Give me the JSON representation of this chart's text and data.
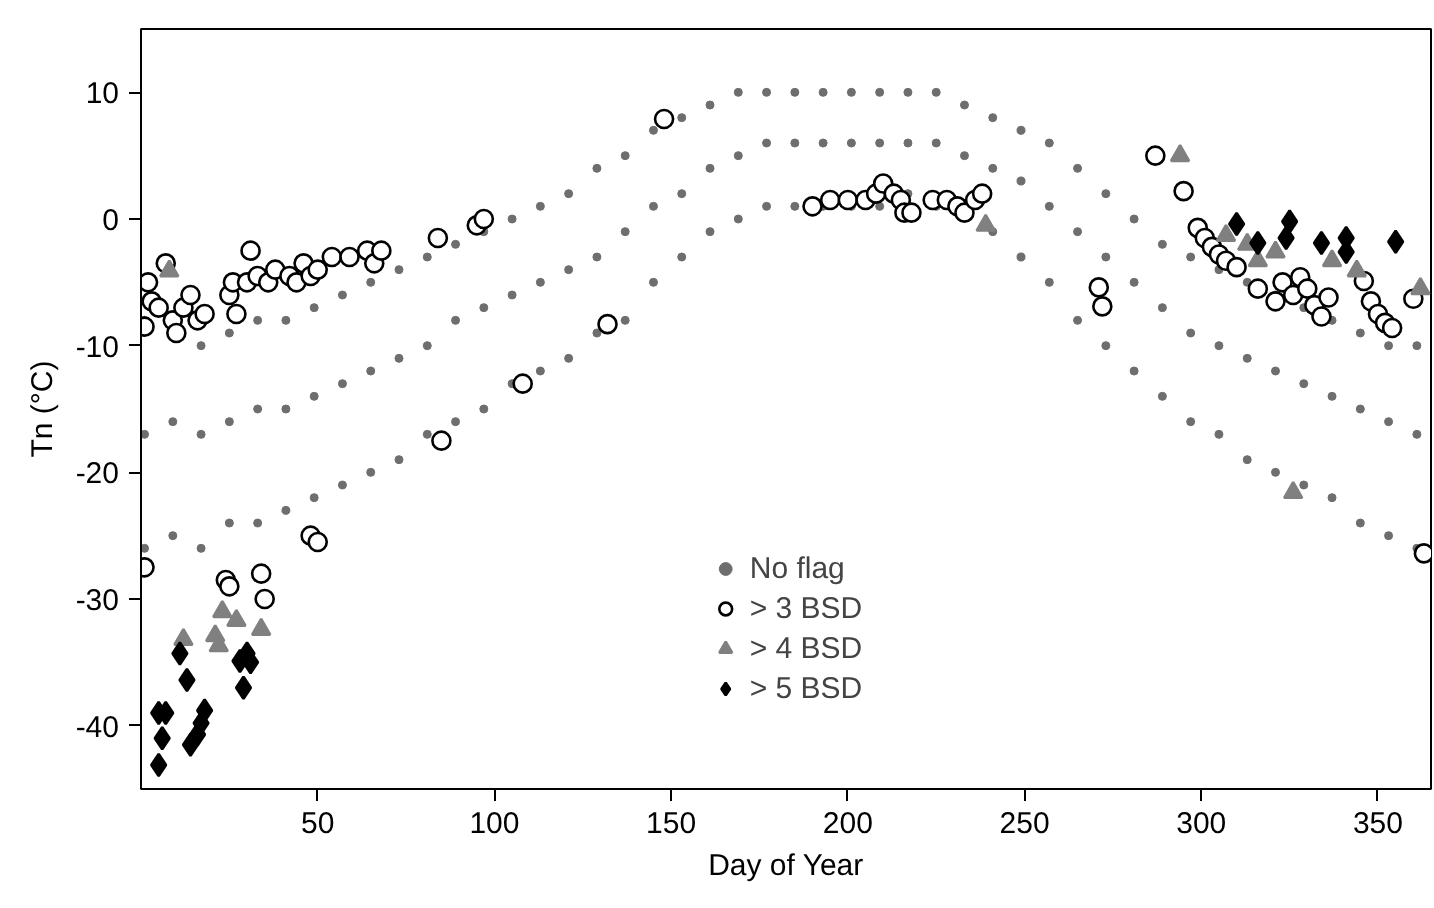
{
  "chart_data": {
    "type": "scatter",
    "xlabel": "Day of Year",
    "ylabel": "Tn (°C)",
    "xlim": [
      0,
      365
    ],
    "ylim": [
      -45,
      15
    ],
    "xticks": [
      50,
      100,
      150,
      200,
      250,
      300,
      350
    ],
    "yticks": [
      -40,
      -30,
      -20,
      -10,
      0,
      10
    ],
    "grid": false,
    "legend": "bottom",
    "series": [
      {
        "name": "No flag",
        "color": "#6e6e6e",
        "marker": "circle",
        "x": [
          1,
          1,
          1,
          9,
          9,
          17,
          17,
          17,
          25,
          25,
          25,
          33,
          33,
          33,
          41,
          41,
          41,
          49,
          49,
          49,
          57,
          57,
          57,
          65,
          65,
          65,
          73,
          73,
          73,
          81,
          81,
          81,
          89,
          89,
          89,
          97,
          97,
          97,
          105,
          105,
          105,
          113,
          113,
          113,
          121,
          121,
          121,
          129,
          129,
          129,
          137,
          137,
          137,
          145,
          145,
          145,
          153,
          153,
          153,
          161,
          161,
          161,
          169,
          169,
          169,
          177,
          177,
          177,
          185,
          185,
          185,
          193,
          193,
          193,
          201,
          201,
          201,
          209,
          209,
          209,
          217,
          217,
          217,
          225,
          225,
          225,
          233,
          233,
          241,
          241,
          241,
          249,
          249,
          249,
          257,
          257,
          257,
          265,
          265,
          265,
          273,
          273,
          273,
          281,
          281,
          281,
          289,
          289,
          289,
          297,
          297,
          297,
          305,
          305,
          305,
          313,
          313,
          313,
          321,
          321,
          321,
          329,
          329,
          329,
          337,
          337,
          337,
          345,
          345,
          345,
          353,
          353,
          353,
          361,
          361,
          361
        ],
        "values": [
          -26,
          -17,
          -8,
          -25,
          -16,
          -26,
          -17,
          -10,
          -24,
          -16,
          -9,
          -24,
          -15,
          -8,
          -23,
          -15,
          -8,
          -22,
          -14,
          -7,
          -21,
          -13,
          -6,
          -20,
          -12,
          -5,
          -19,
          -11,
          -4,
          -17,
          -10,
          -3,
          -16,
          -8,
          -2,
          -15,
          -7,
          -1,
          -13,
          -6,
          0,
          -12,
          -5,
          1,
          -11,
          -4,
          2,
          -9,
          -3,
          4,
          -8,
          -1,
          5,
          -5,
          1,
          7,
          -3,
          2,
          8,
          -1,
          4,
          9,
          0,
          5,
          10,
          1,
          6,
          10,
          1,
          6,
          10,
          1,
          6,
          10,
          1,
          6,
          10,
          1,
          6,
          10,
          2,
          6,
          10,
          1,
          6,
          10,
          5,
          9,
          -1,
          4,
          8,
          -3,
          3,
          7,
          -5,
          1,
          6,
          -8,
          -1,
          4,
          -10,
          -3,
          2,
          -12,
          -5,
          0,
          -14,
          -7,
          -2,
          -16,
          -9,
          -3,
          -17,
          -10,
          -4,
          -19,
          -11,
          -5,
          -20,
          -12,
          -6,
          -21,
          -13,
          -7,
          -22,
          -14,
          -8,
          -24,
          -15,
          -9,
          -25,
          -16,
          -10,
          -26,
          -17,
          -10
        ]
      },
      {
        "name": "> 3 BSD",
        "color": "#000000",
        "marker": "circle",
        "x": [
          1,
          2,
          3,
          5,
          7,
          9,
          10,
          12,
          14,
          16,
          18,
          25,
          26,
          27,
          30,
          31,
          33,
          36,
          38,
          42,
          44,
          46,
          48,
          50,
          54,
          59,
          64,
          66,
          68,
          84,
          95,
          97,
          1,
          24,
          25,
          34,
          35,
          48,
          50,
          85,
          108,
          132,
          148,
          190,
          195,
          200,
          205,
          208,
          210,
          213,
          215,
          216,
          218,
          224,
          228,
          231,
          233,
          236,
          238,
          271,
          272,
          287,
          295,
          299,
          301,
          303,
          305,
          307,
          310,
          316,
          321,
          323,
          326,
          328,
          330,
          332,
          334,
          336,
          346,
          348,
          350,
          352,
          354,
          360,
          363
        ],
        "values": [
          -8.5,
          -5,
          -6.5,
          -7,
          -3.5,
          -8,
          -9,
          -7,
          -6,
          -8,
          -7.5,
          -6,
          -5,
          -7.5,
          -5,
          -2.5,
          -4.5,
          -5,
          -4,
          -4.5,
          -5,
          -3.5,
          -4.5,
          -4,
          -3,
          -3,
          -2.5,
          -3.5,
          -2.5,
          -1.5,
          -0.5,
          0,
          -27.5,
          -28.5,
          -29,
          -28,
          -30,
          -25,
          -25.5,
          -17.5,
          -13,
          -8.3,
          7.9,
          1,
          1.5,
          1.5,
          1.5,
          2,
          2.8,
          2,
          1.5,
          0.5,
          0.5,
          1.5,
          1.5,
          1,
          0.5,
          1.5,
          2,
          -5.4,
          -6.9,
          5,
          2.2,
          -0.7,
          -1.5,
          -2.2,
          -2.8,
          -3.3,
          -3.8,
          -5.5,
          -6.5,
          -5,
          -6,
          -4.6,
          -5.5,
          -6.8,
          -7.7,
          -6.2,
          -4.9,
          -6.5,
          -7.5,
          -8.2,
          -8.6,
          -6.3,
          -26.4
        ]
      },
      {
        "name": "> 4 BSD",
        "color": "#808080",
        "marker": "triangle",
        "x": [
          8,
          12,
          21,
          22,
          23,
          27,
          34,
          239,
          294,
          307,
          313,
          316,
          321,
          326,
          337,
          344,
          362
        ],
        "values": [
          -4.1,
          -33.2,
          -32.9,
          -33.7,
          -31,
          -31.7,
          -32.4,
          -0.5,
          5,
          -1.3,
          -2,
          -3.3,
          -2.6,
          -21.6,
          -3.3,
          -4.1,
          -5.5
        ]
      },
      {
        "name": "> 5 BSD",
        "color": "#000000",
        "marker": "diamond",
        "x": [
          11,
          13,
          5,
          7,
          6,
          5,
          14,
          16,
          18,
          17,
          28,
          30,
          29,
          31,
          310,
          316,
          325,
          324,
          334,
          341,
          341,
          355
        ],
        "values": [
          -34.3,
          -36.4,
          -39,
          -39,
          -41,
          -43.1,
          -41.5,
          -40.7,
          -38.8,
          -39.8,
          -34.9,
          -34.3,
          -37,
          -35,
          -0.4,
          -1.9,
          -0.2,
          -1.5,
          -1.9,
          -1.5,
          -2.6,
          -1.8
        ]
      }
    ]
  }
}
